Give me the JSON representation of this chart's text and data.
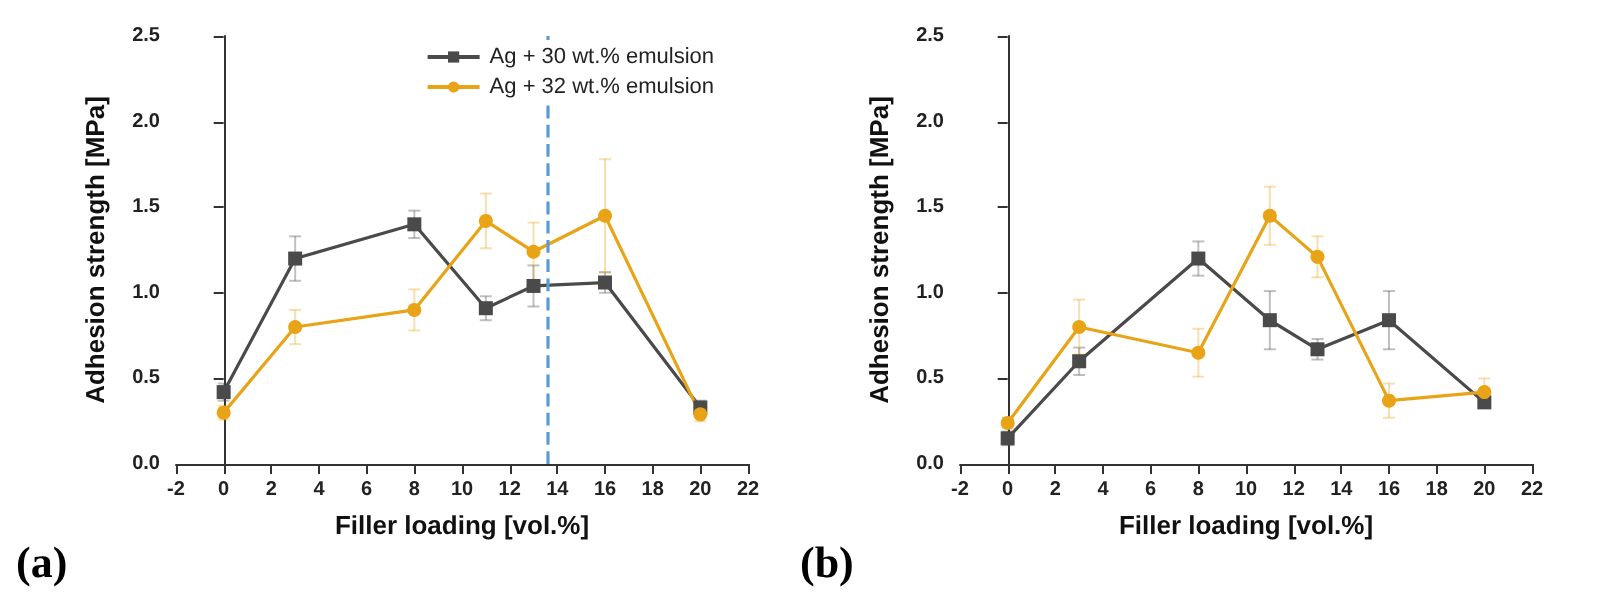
{
  "chart_data": [
    {
      "type": "line",
      "xlabel": "Filler loading [vol.%]",
      "ylabel": "Adhesion strength [MPa]",
      "annotations": [
        "(a)"
      ],
      "x": [
        0,
        3,
        8,
        11,
        13,
        16,
        20
      ],
      "xlim": [
        -2,
        22
      ],
      "xticks": [
        -2,
        0,
        2,
        4,
        6,
        8,
        10,
        12,
        14,
        16,
        18,
        20,
        22
      ],
      "ylim": [
        0,
        2.5
      ],
      "yticks": [
        {
          "value": 0,
          "label": "0.0"
        },
        0.5,
        {
          "value": 1,
          "label": "1.0"
        },
        1.5,
        {
          "value": 2,
          "label": "2.0"
        },
        2.5
      ],
      "legend": "top right",
      "ref_lines": [
        {
          "axis": "x",
          "value": 13.6,
          "color": "#5b9bd5",
          "line_style": "dashed"
        }
      ],
      "series": [
        {
          "name": "Ag + 30 wt.% emulsion",
          "color": "#4a4a4a",
          "marker": "square",
          "values": [
            0.42,
            1.2,
            1.4,
            0.91,
            1.04,
            1.06,
            0.33
          ],
          "errors": [
            0.05,
            0.13,
            0.08,
            0.07,
            0.12,
            0.06,
            0.04
          ]
        },
        {
          "name": "Ag + 32 wt.% emulsion",
          "color": "#e8a317",
          "marker": "circle",
          "values": [
            0.3,
            0.8,
            0.9,
            1.42,
            1.24,
            1.45,
            0.29
          ],
          "errors": [
            0.04,
            0.1,
            0.12,
            0.16,
            0.17,
            0.33,
            0.04
          ]
        }
      ]
    },
    {
      "type": "line",
      "xlabel": "Filler loading [vol.%]",
      "ylabel": "Adhesion strength [MPa]",
      "annotations": [
        "(b)"
      ],
      "x": [
        0,
        3,
        8,
        11,
        13,
        16,
        20
      ],
      "xlim": [
        -2,
        22
      ],
      "xticks": [
        -2,
        0,
        2,
        4,
        6,
        8,
        10,
        12,
        14,
        16,
        18,
        20,
        22
      ],
      "ylim": [
        0,
        2.5
      ],
      "yticks": [
        {
          "value": 0,
          "label": "0.0"
        },
        0.5,
        {
          "value": 1,
          "label": "1.0"
        },
        1.5,
        {
          "value": 2,
          "label": "2.0"
        },
        2.5
      ],
      "series": [
        {
          "color": "#4a4a4a",
          "marker": "square",
          "values": [
            0.15,
            0.6,
            1.2,
            0.84,
            0.67,
            0.84,
            0.36
          ],
          "errors": [
            0.04,
            0.08,
            0.1,
            0.17,
            0.06,
            0.17,
            0.03
          ]
        },
        {
          "color": "#e8a317",
          "marker": "circle",
          "values": [
            0.24,
            0.8,
            0.65,
            1.45,
            1.21,
            0.37,
            0.42
          ],
          "errors": [
            0.03,
            0.16,
            0.14,
            0.17,
            0.12,
            0.1,
            0.08
          ]
        }
      ]
    }
  ]
}
